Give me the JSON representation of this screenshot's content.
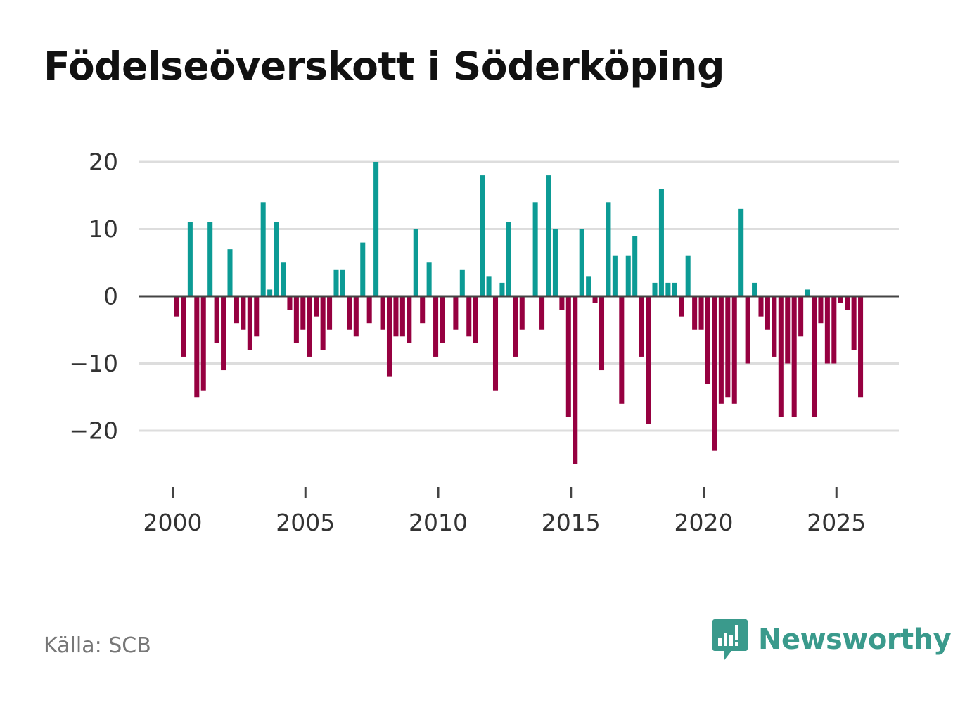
{
  "title": "Födelseöverskott i Söderköping",
  "source": "Källa: SCB",
  "brand": "Newsworthy",
  "colors": {
    "positive": "#0c9b95",
    "negative": "#960040",
    "grid": "#dddddd",
    "zero_line": "#444444",
    "brand": "#3a9a8c"
  },
  "chart_data": {
    "type": "bar",
    "title": "Födelseöverskott i Söderköping",
    "xlabel": "",
    "ylabel": "",
    "grid": true,
    "xlim": [
      1999,
      2027.5
    ],
    "ylim": [
      -29,
      21
    ],
    "xticks": [
      2000,
      2005,
      2010,
      2015,
      2020,
      2025
    ],
    "xtick_labels": [
      "2000",
      "2005",
      "2010",
      "2015",
      "2020",
      "2025"
    ],
    "yticks": [
      20,
      10,
      0,
      -10,
      -20
    ],
    "ytick_labels": [
      "20",
      "10",
      "0",
      "−10",
      "−20"
    ],
    "period": "quarterly",
    "x_start": 2000.0,
    "x_step": 0.25,
    "values": [
      -3,
      -9,
      11,
      -15,
      -14,
      11,
      -7,
      -11,
      7,
      -4,
      -5,
      -8,
      -6,
      14,
      1,
      11,
      5,
      -2,
      -7,
      -5,
      -9,
      -3,
      -8,
      -5,
      4,
      4,
      -5,
      -6,
      8,
      -4,
      20,
      -5,
      -12,
      -6,
      -6,
      -7,
      10,
      -4,
      5,
      -9,
      -7,
      0,
      -5,
      4,
      -6,
      -7,
      18,
      3,
      -14,
      2,
      11,
      -9,
      -5,
      0,
      14,
      -5,
      18,
      10,
      -2,
      -18,
      -25,
      10,
      3,
      -1,
      -11,
      14,
      6,
      -16,
      6,
      9,
      -9,
      -19,
      2,
      16,
      2,
      2,
      -3,
      6,
      -5,
      -5,
      -13,
      -23,
      -16,
      -15,
      -16,
      13,
      -10,
      2,
      -3,
      -5,
      -9,
      -18,
      -10,
      -18,
      -6,
      1,
      -18,
      -4,
      -10,
      -10,
      -1,
      -2,
      -8,
      -15
    ]
  }
}
